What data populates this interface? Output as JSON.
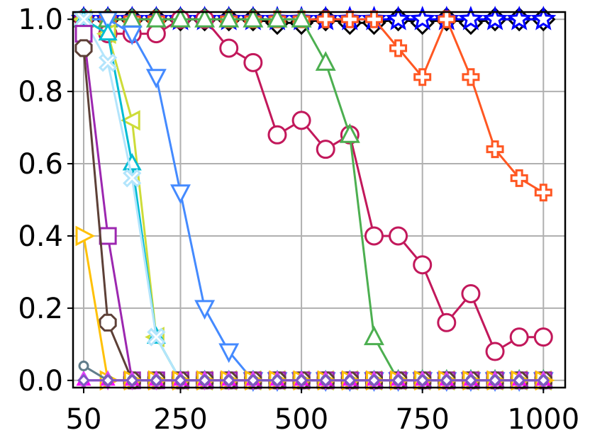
{
  "chart_data": {
    "type": "line",
    "title": "",
    "xlabel": "",
    "ylabel": "",
    "xlim": [
      28,
      1045
    ],
    "ylim": [
      -0.02,
      1.02
    ],
    "grid": true,
    "legend": "none",
    "x_ticks": [
      50,
      250,
      500,
      750,
      1000
    ],
    "x_tick_labels": [
      "50",
      "250",
      "500",
      "750",
      "1000"
    ],
    "y_ticks": [
      0.0,
      0.2,
      0.4,
      0.6,
      0.8,
      1.0
    ],
    "y_tick_labels": [
      "0.0",
      "0.2",
      "0.4",
      "0.6",
      "0.8",
      "1.0"
    ],
    "series": [
      {
        "color": "#000000",
        "marker": "diamond",
        "x": [
          50,
          100,
          150,
          200,
          250,
          300,
          350,
          400,
          450,
          500,
          550,
          600,
          650,
          700,
          750,
          800,
          850,
          900,
          950,
          1000
        ],
        "y": [
          1,
          1,
          1,
          1,
          1,
          1,
          1,
          1,
          0.99,
          0.99,
          1,
          0.99,
          0.99,
          1,
          0.99,
          1,
          0.99,
          1,
          1,
          1
        ]
      },
      {
        "color": "#0000ff",
        "marker": "star",
        "x": [
          50,
          100,
          150,
          200,
          250,
          300,
          350,
          400,
          450,
          500,
          550,
          600,
          650,
          700,
          750,
          800,
          850,
          900,
          950,
          1000
        ],
        "y": [
          1,
          1,
          1,
          1,
          1,
          1,
          1,
          1,
          1,
          1,
          1,
          1,
          1,
          1,
          1,
          1,
          1,
          1,
          1,
          1
        ]
      },
      {
        "color": "#ff5722",
        "marker": "plus",
        "x": [
          50,
          100,
          150,
          200,
          250,
          300,
          350,
          400,
          450,
          500,
          550,
          600,
          650,
          700,
          750,
          800,
          850,
          900,
          950,
          1000
        ],
        "y": [
          1,
          1,
          1,
          1,
          1,
          1,
          1,
          1,
          1,
          1,
          1,
          1,
          1,
          0.92,
          0.84,
          1,
          0.84,
          0.64,
          0.56,
          0.52
        ]
      },
      {
        "color": "#c2185b",
        "marker": "circle",
        "x": [
          50,
          100,
          150,
          200,
          250,
          300,
          350,
          400,
          450,
          500,
          550,
          600,
          650,
          700,
          750,
          800,
          850,
          900,
          950,
          1000
        ],
        "y": [
          1,
          0.96,
          0.96,
          0.96,
          1,
          1,
          0.92,
          0.88,
          0.68,
          0.72,
          0.64,
          0.68,
          0.4,
          0.4,
          0.32,
          0.16,
          0.24,
          0.08,
          0.12,
          0.12
        ]
      },
      {
        "color": "#4caf50",
        "marker": "triangle-up",
        "x": [
          50,
          100,
          150,
          200,
          250,
          300,
          350,
          400,
          450,
          500,
          550,
          600,
          650,
          700,
          750,
          800,
          850,
          900,
          950,
          1000
        ],
        "y": [
          1,
          1,
          1,
          1,
          1,
          1,
          1,
          1,
          1,
          1,
          0.88,
          0.68,
          0.12,
          0,
          0,
          0,
          0,
          0,
          0,
          0
        ]
      },
      {
        "color": "#448aff",
        "marker": "triangle-down",
        "x": [
          50,
          100,
          150,
          200,
          250,
          300,
          350,
          400,
          450,
          500,
          550,
          600,
          650,
          700,
          750,
          800,
          850,
          900,
          950,
          1000
        ],
        "y": [
          1,
          1,
          0.96,
          0.84,
          0.52,
          0.2,
          0.08,
          0,
          0,
          0,
          0,
          0,
          0,
          0,
          0,
          0,
          0,
          0,
          0,
          0
        ]
      },
      {
        "color": "#cddc39",
        "marker": "triangle-left",
        "x": [
          50,
          100,
          150,
          200,
          250,
          300,
          350,
          400,
          450,
          500,
          550,
          600,
          650,
          700,
          750,
          800,
          850,
          900,
          950,
          1000
        ],
        "y": [
          1,
          0.96,
          0.72,
          0.12,
          0,
          0,
          0,
          0,
          0,
          0,
          0,
          0,
          0,
          0,
          0,
          0,
          0,
          0,
          0,
          0
        ]
      },
      {
        "color": "#00bcd4",
        "marker": "tri",
        "x": [
          50,
          100,
          150,
          200,
          250,
          300,
          350,
          400,
          450,
          500,
          550,
          600,
          650,
          700,
          750,
          800,
          850,
          900,
          950,
          1000
        ],
        "y": [
          1,
          0.96,
          0.6,
          0.12,
          0,
          0,
          0,
          0,
          0,
          0,
          0,
          0,
          0,
          0,
          0,
          0,
          0,
          0,
          0,
          0
        ]
      },
      {
        "color": "#b3e5fc",
        "marker": "x-filled",
        "x": [
          50,
          100,
          150,
          200,
          250,
          300,
          350,
          400,
          450,
          500,
          550,
          600,
          650,
          700,
          750,
          800,
          850,
          900,
          950,
          1000
        ],
        "y": [
          1,
          0.88,
          0.56,
          0.12,
          0,
          0,
          0,
          0,
          0,
          0,
          0,
          0,
          0,
          0,
          0,
          0,
          0,
          0,
          0,
          0
        ]
      },
      {
        "color": "#9c27b0",
        "marker": "square",
        "x": [
          50,
          100,
          150,
          200,
          250,
          300,
          350,
          400,
          450,
          500,
          550,
          600,
          650,
          700,
          750,
          800,
          850,
          900,
          950,
          1000
        ],
        "y": [
          0.96,
          0.4,
          0,
          0,
          0,
          0,
          0,
          0,
          0,
          0,
          0,
          0,
          0,
          0,
          0,
          0,
          0,
          0,
          0,
          0
        ]
      },
      {
        "color": "#5d4037",
        "marker": "octagon",
        "x": [
          50,
          100,
          150,
          200,
          250,
          300,
          350,
          400,
          450,
          500,
          550,
          600,
          650,
          700,
          750,
          800,
          850,
          900,
          950,
          1000
        ],
        "y": [
          0.92,
          0.16,
          0,
          0,
          0,
          0,
          0,
          0,
          0,
          0,
          0,
          0,
          0,
          0,
          0,
          0,
          0,
          0,
          0,
          0
        ]
      },
      {
        "color": "#ffc107",
        "marker": "triangle-right",
        "x": [
          50,
          100,
          150,
          200,
          250,
          300,
          350,
          400,
          450,
          500,
          550,
          600,
          650,
          700,
          750,
          800,
          850,
          900,
          950,
          1000
        ],
        "y": [
          0.4,
          0,
          0,
          0,
          0,
          0,
          0,
          0,
          0,
          0,
          0,
          0,
          0,
          0,
          0,
          0,
          0,
          0,
          0,
          0
        ]
      },
      {
        "color": "#ff00ff",
        "marker": "small-triangle-up",
        "x": [
          50,
          100,
          150,
          200,
          250,
          300,
          350,
          400,
          450,
          500,
          550,
          600,
          650,
          700,
          750,
          800,
          850,
          900,
          950,
          1000
        ],
        "y": [
          0,
          0,
          0,
          0,
          0,
          0,
          0,
          0,
          0,
          0,
          0,
          0,
          0,
          0,
          0,
          0,
          0,
          0,
          0,
          0
        ]
      },
      {
        "color": "#e040fb",
        "marker": "thin-diamond",
        "x": [
          50,
          100,
          150,
          200,
          250,
          300,
          350,
          400,
          450,
          500,
          550,
          600,
          650,
          700,
          750,
          800,
          850,
          900,
          950,
          1000
        ],
        "y": [
          0,
          0,
          0,
          0,
          0,
          0,
          0,
          0,
          0,
          0,
          0,
          0,
          0,
          0,
          0,
          0,
          0,
          0,
          0,
          0
        ]
      },
      {
        "color": "#607d8b",
        "marker": "small-circle",
        "x": [
          50,
          100,
          150,
          200,
          250,
          300,
          350,
          400,
          450,
          500,
          550,
          600,
          650,
          700,
          750,
          800,
          850,
          900,
          950,
          1000
        ],
        "y": [
          0.04,
          0,
          0,
          0,
          0,
          0,
          0,
          0,
          0,
          0,
          0,
          0,
          0,
          0,
          0,
          0,
          0,
          0,
          0,
          0
        ]
      },
      {
        "color": "#7e57c2",
        "marker": "half-diamond",
        "x": [
          50,
          100,
          150,
          200,
          250,
          300,
          350,
          400,
          450,
          500,
          550,
          600,
          650,
          700,
          750,
          800,
          850,
          900,
          950,
          1000
        ],
        "y": [
          0,
          0,
          0,
          0,
          0,
          0,
          0,
          0,
          0,
          0,
          0,
          0,
          0,
          0,
          0,
          0,
          0,
          0,
          0,
          0
        ]
      }
    ]
  }
}
